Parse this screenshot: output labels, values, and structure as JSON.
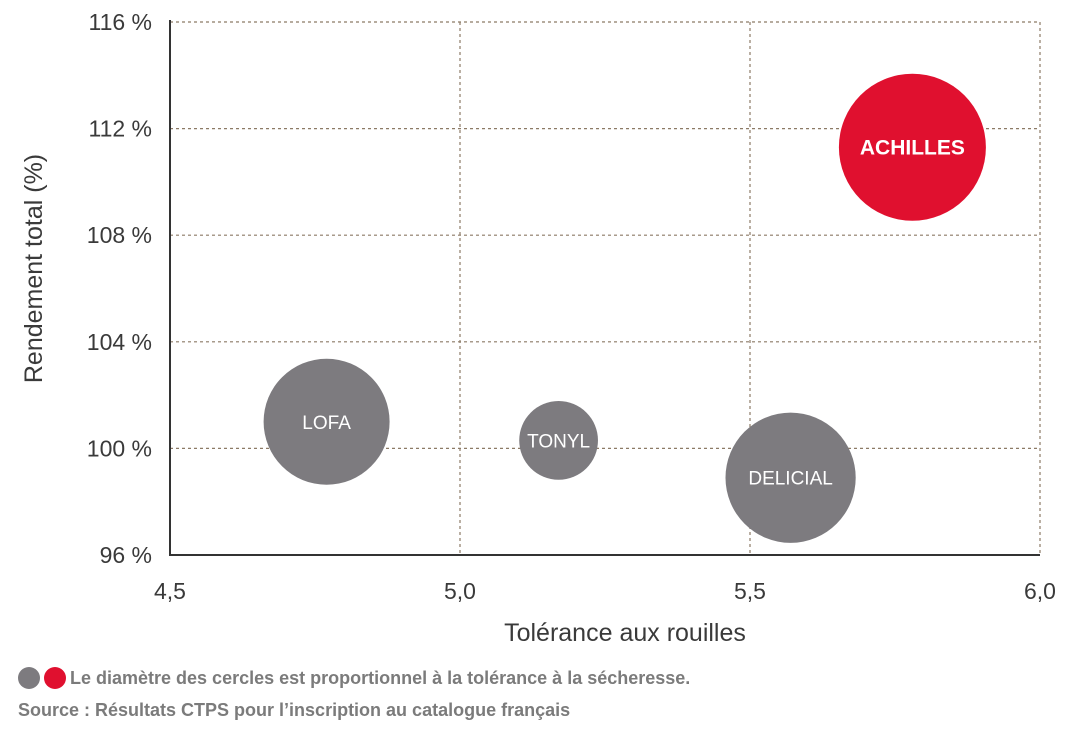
{
  "chart_data": {
    "type": "scatter",
    "xlabel": "Tolérance aux rouilles",
    "ylabel": "Rendement total (%)",
    "xlim": [
      4.5,
      6.0
    ],
    "ylim": [
      96,
      116
    ],
    "x_ticks": [
      "4,5",
      "5,0",
      "5,5",
      "6,0"
    ],
    "y_ticks": [
      "96 %",
      "100 %",
      "104 %",
      "108 %",
      "112 %",
      "116 %"
    ],
    "grid": true,
    "points": [
      {
        "label": "LOFA",
        "x": 4.77,
        "y": 101.0,
        "size": 6.0,
        "color": "#7d7b7f",
        "highlight": false
      },
      {
        "label": "TONYL",
        "x": 5.17,
        "y": 100.3,
        "size": 3.75,
        "color": "#7d7b7f",
        "highlight": false
      },
      {
        "label": "DELICIAL",
        "x": 5.57,
        "y": 98.9,
        "size": 6.2,
        "color": "#7d7b7f",
        "highlight": false
      },
      {
        "label": "ACHILLES",
        "x": 5.78,
        "y": 111.3,
        "size": 7.0,
        "color": "#e0102f",
        "highlight": true
      }
    ]
  },
  "legend": {
    "text": "Le diamètre des cercles est proportionnel à la tolérance à la sécheresse.",
    "colors": [
      "#7d7b7f",
      "#e0102f"
    ]
  },
  "source": "Source : Résultats CTPS pour l’inscription au catalogue français"
}
